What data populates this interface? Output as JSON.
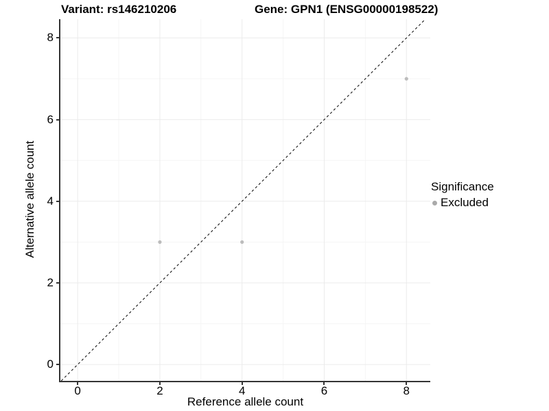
{
  "title": {
    "variant": "Variant: rs146210206",
    "gene": "Gene: GPN1 (ENSG00000198522)"
  },
  "axes": {
    "x": {
      "label": "Reference allele count",
      "ticks": [
        0,
        2,
        4,
        6,
        8
      ],
      "minor_ticks": [
        1,
        3,
        5,
        7
      ]
    },
    "y": {
      "label": "Alternative allele count",
      "ticks": [
        0,
        2,
        4,
        6,
        8
      ],
      "minor_ticks": [
        1,
        3,
        5,
        7
      ]
    }
  },
  "legend": {
    "title": "Significance",
    "entries": [
      {
        "label": "Excluded",
        "color": "#aaaaaa",
        "marker": "circle"
      }
    ]
  },
  "chart_data": {
    "type": "scatter",
    "title": "Variant: rs146210206   Gene: GPN1 (ENSG00000198522)",
    "xlabel": "Reference allele count",
    "ylabel": "Alternative allele count",
    "xlim": [
      -0.42,
      8.58
    ],
    "ylim": [
      -0.4,
      8.46
    ],
    "x_ticks": [
      0,
      2,
      4,
      6,
      8
    ],
    "y_ticks": [
      0,
      2,
      4,
      6,
      8
    ],
    "grid": "major+minor",
    "legend_position": "right",
    "series": [
      {
        "name": "Excluded",
        "color": "#bcbcbc",
        "points": [
          [
            2,
            3
          ],
          [
            4,
            3
          ],
          [
            8,
            7
          ]
        ]
      }
    ],
    "reference_line": {
      "type": "identity",
      "style": "dashed",
      "color": "#000000"
    }
  },
  "colors": {
    "grid_major": "#ebebeb",
    "grid_minor": "#f5f5f5",
    "axis_line": "#333333",
    "point": "#bcbcbc",
    "dashed_line": "#000000"
  }
}
